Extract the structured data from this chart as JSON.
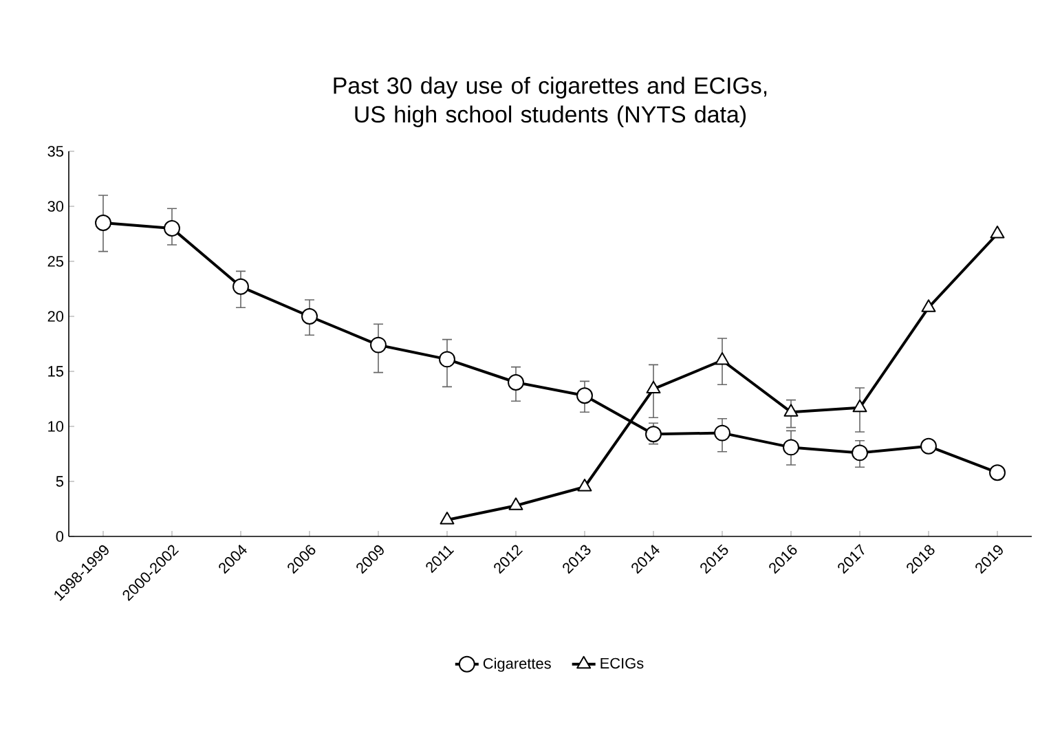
{
  "chart_data": {
    "type": "line",
    "title": "Past 30 day use of cigarettes and ECIGs, US high school students (NYTS data)",
    "categories": [
      "1998-1999",
      "2000-2002",
      "2004",
      "2006",
      "2009",
      "2011",
      "2012",
      "2013",
      "2014",
      "2015",
      "2016",
      "2017",
      "2018",
      "2019"
    ],
    "series": [
      {
        "name": "Cigarettes",
        "color": "#000000",
        "marker": "circle",
        "values": [
          28.5,
          28.0,
          22.7,
          20.0,
          17.4,
          16.1,
          14.0,
          12.8,
          9.3,
          9.4,
          8.1,
          7.6,
          8.2,
          5.8
        ],
        "errors": [
          [
            25.9,
            31.0
          ],
          [
            26.5,
            29.8
          ],
          [
            20.8,
            24.1
          ],
          [
            18.3,
            21.5
          ],
          [
            14.9,
            19.3
          ],
          [
            13.6,
            17.9
          ],
          [
            12.3,
            15.4
          ],
          [
            11.3,
            14.1
          ],
          [
            8.4,
            10.3
          ],
          [
            7.7,
            10.7
          ],
          [
            6.5,
            9.6
          ],
          [
            6.3,
            8.7
          ],
          null,
          null
        ]
      },
      {
        "name": "ECIGs",
        "color": "#000000",
        "marker": "triangle",
        "values": [
          null,
          null,
          null,
          null,
          null,
          1.5,
          2.8,
          4.5,
          13.4,
          16.0,
          11.3,
          11.7,
          20.8,
          27.5
        ],
        "errors": [
          null,
          null,
          null,
          null,
          null,
          null,
          null,
          null,
          [
            10.8,
            15.6
          ],
          [
            13.8,
            18.0
          ],
          [
            9.9,
            12.4
          ],
          [
            9.5,
            13.5
          ],
          null,
          null
        ]
      }
    ],
    "ylim": [
      0,
      35
    ],
    "yticks": [
      0,
      5,
      10,
      15,
      20,
      25,
      30,
      35
    ],
    "grid": false,
    "legend": "bottom",
    "line_style": "solid"
  }
}
